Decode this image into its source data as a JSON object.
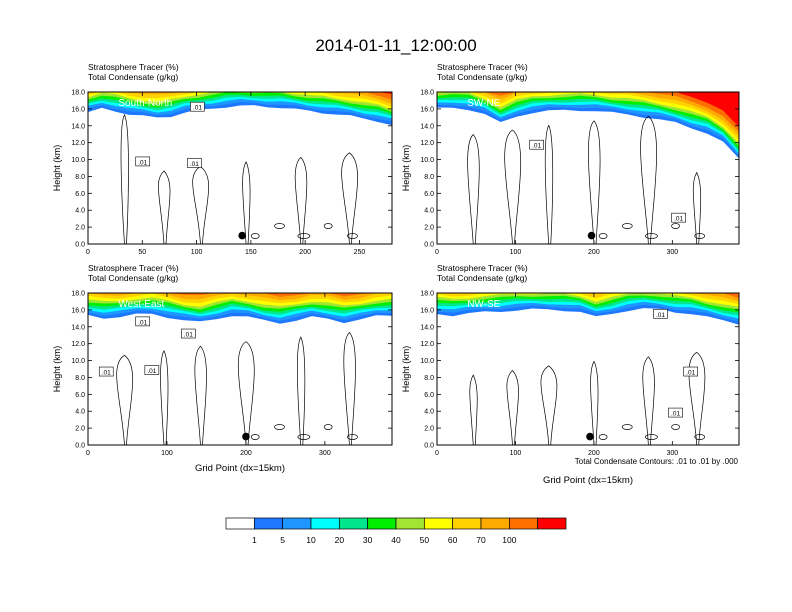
{
  "figure": {
    "title": "2014-01-11_12:00:00",
    "footnote": "Total Condensate Contours: .01 to .01 by .000"
  },
  "colors": {
    "bands": [
      "#ffffff",
      "#1e78ff",
      "#1e96ff",
      "#00ffff",
      "#00e68c",
      "#00ee00",
      "#a0e632",
      "#ffff00",
      "#ffd200",
      "#ffaa00",
      "#ff6e00",
      "#ff0000"
    ]
  },
  "chart_data": [
    {
      "type": "heatmap",
      "panel_label": "South-North",
      "var_line1": "Stratosphere Tracer   (%)",
      "var_line2": "Total Condensate   (g/kg)",
      "ylabel": "Height (km)",
      "xlabel": "",
      "xlim": [
        0,
        280
      ],
      "ylim": [
        0,
        18
      ],
      "xticks": [
        "0",
        "50",
        "100",
        "150",
        "200",
        "250"
      ],
      "xtick_values": [
        0,
        50,
        100,
        150,
        200,
        250
      ],
      "yticks": [
        "0.0",
        "2.0",
        "4.0",
        "6.0",
        "8.0",
        "10.0",
        "12.0",
        "14.0",
        "16.0",
        "18.0"
      ],
      "marker": {
        "x": 142,
        "y": 1.0
      },
      "contour_labels": [
        ".01",
        ".01",
        ".01"
      ],
      "tracer_base_km": [
        15.0,
        15.5,
        15.2,
        14.8,
        14.6,
        14.4,
        14.6,
        15.0,
        15.3,
        15.5,
        15.7,
        15.8,
        15.8,
        15.7,
        15.6,
        15.4,
        15.2,
        15.0,
        14.8,
        14.6,
        14.3,
        14.0,
        13.5
      ]
    },
    {
      "type": "heatmap",
      "panel_label": "SW-NE",
      "var_line1": "Stratosphere Tracer   (%)",
      "var_line2": "Total Condensate   (g/kg)",
      "ylabel": "Height (km)",
      "xlabel": "",
      "xlim": [
        0,
        385
      ],
      "ylim": [
        0,
        18
      ],
      "xticks": [
        "0",
        "100",
        "200",
        "300"
      ],
      "xtick_values": [
        0,
        100,
        200,
        300
      ],
      "yticks": [
        "0.0",
        "2.0",
        "4.0",
        "6.0",
        "8.0",
        "10.0",
        "12.0",
        "14.0",
        "16.0",
        "18.0"
      ],
      "marker": {
        "x": 197,
        "y": 1.0
      },
      "contour_labels": [
        ".01",
        ".01"
      ],
      "tracer_base_km": [
        15.5,
        15.6,
        15.4,
        14.8,
        13.8,
        14.6,
        15.0,
        15.2,
        15.3,
        15.3,
        15.2,
        15.0,
        14.8,
        14.5,
        14.2,
        13.8,
        13.2,
        12.6,
        11.5,
        9.5
      ]
    },
    {
      "type": "heatmap",
      "panel_label": "West-East",
      "var_line1": "Stratosphere Tracer   (%)",
      "var_line2": "Total Condensate   (g/kg)",
      "ylabel": "Height (km)",
      "xlabel": "Grid Point (dx=15km)",
      "xlim": [
        0,
        385
      ],
      "ylim": [
        0,
        18
      ],
      "xticks": [
        "0",
        "100",
        "200",
        "300"
      ],
      "xtick_values": [
        0,
        100,
        200,
        300
      ],
      "yticks": [
        "0.0",
        "2.0",
        "4.0",
        "6.0",
        "8.0",
        "10.0",
        "12.0",
        "14.0",
        "16.0",
        "18.0"
      ],
      "marker": {
        "x": 200,
        "y": 1.0
      },
      "contour_labels": [
        ".01",
        ".01",
        ".01",
        ".01"
      ],
      "tracer_base_km": [
        14.8,
        14.5,
        14.6,
        14.9,
        15.0,
        14.6,
        14.2,
        14.0,
        14.4,
        14.8,
        14.6,
        14.2,
        13.9,
        14.2,
        14.6,
        14.4,
        14.0,
        14.3,
        14.7,
        14.8
      ]
    },
    {
      "type": "heatmap",
      "panel_label": "NW-SE",
      "var_line1": "Stratosphere Tracer   (%)",
      "var_line2": "Total Condensate   (g/kg)",
      "ylabel": "Height (km)",
      "xlabel": "Grid Point (dx=15km)",
      "xlim": [
        0,
        385
      ],
      "ylim": [
        0,
        18
      ],
      "xticks": [
        "0",
        "100",
        "200",
        "300"
      ],
      "xtick_values": [
        0,
        100,
        200,
        300
      ],
      "yticks": [
        "0.0",
        "2.0",
        "4.0",
        "6.0",
        "8.0",
        "10.0",
        "12.0",
        "14.0",
        "16.0",
        "18.0"
      ],
      "marker": {
        "x": 195,
        "y": 1.0
      },
      "contour_labels": [
        ".01",
        ".01",
        ".01"
      ],
      "tracer_base_km": [
        15.0,
        14.8,
        15.0,
        15.2,
        15.3,
        15.4,
        15.5,
        15.5,
        15.4,
        15.2,
        14.6,
        15.0,
        15.4,
        15.6,
        15.5,
        15.2,
        15.0,
        14.6,
        14.2,
        13.8
      ]
    }
  ],
  "colorbar": {
    "labels": [
      "1",
      "5",
      "10",
      "20",
      "30",
      "40",
      "50",
      "60",
      "70",
      "100"
    ]
  }
}
